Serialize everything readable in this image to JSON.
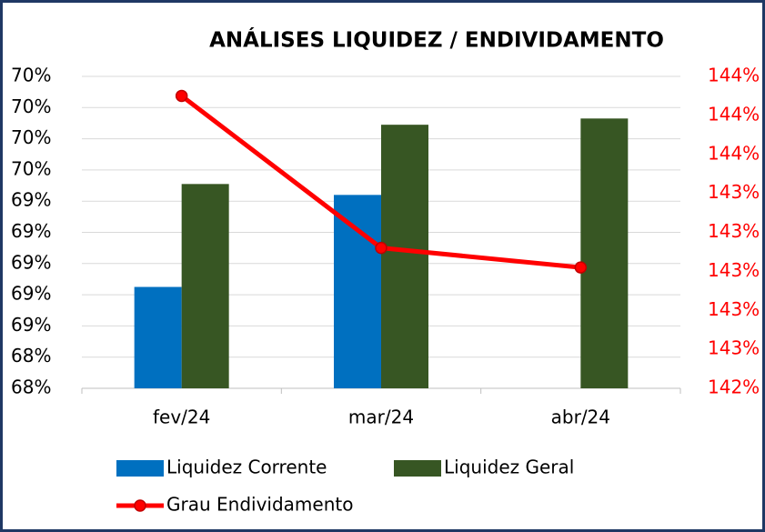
{
  "chart_data": {
    "type": "bar-line",
    "title": "ANÁLISES LIQUIDEZ / ENDIVIDAMENTO",
    "categories": [
      "fev/24",
      "mar/24",
      "abr/24"
    ],
    "series": [
      {
        "name": "Liquidez Corrente",
        "color": "#0070c0",
        "values": [
          68.8,
          69.39,
          null
        ]
      },
      {
        "name": "Liquidez Geral",
        "color": "#375623",
        "values": [
          69.46,
          69.84,
          69.88
        ]
      },
      {
        "name": "Grau Endividamento",
        "color": "#ff0000",
        "type": "line",
        "axis": "y2",
        "values": [
          143.9,
          143.12,
          143.02
        ]
      }
    ],
    "ylim": [
      68.15,
      70.15
    ],
    "yticks": [
      {
        "value": 68.15,
        "label": "68%"
      },
      {
        "value": 68.35,
        "label": "68%"
      },
      {
        "value": 68.55,
        "label": "69%"
      },
      {
        "value": 68.75,
        "label": "69%"
      },
      {
        "value": 68.95,
        "label": "69%"
      },
      {
        "value": 69.15,
        "label": "69%"
      },
      {
        "value": 69.35,
        "label": "69%"
      },
      {
        "value": 69.55,
        "label": "70%"
      },
      {
        "value": 69.75,
        "label": "70%"
      },
      {
        "value": 69.95,
        "label": "70%"
      },
      {
        "value": 70.15,
        "label": "70%"
      }
    ],
    "y2lim": [
      142.4,
      144.0
    ],
    "y2ticks": [
      {
        "value": 142.4,
        "label": "142%"
      },
      {
        "value": 142.6,
        "label": "143%"
      },
      {
        "value": 142.8,
        "label": "143%"
      },
      {
        "value": 143.0,
        "label": "143%"
      },
      {
        "value": 143.2,
        "label": "143%"
      },
      {
        "value": 143.4,
        "label": "143%"
      },
      {
        "value": 143.6,
        "label": "144%"
      },
      {
        "value": 143.8,
        "label": "144%"
      },
      {
        "value": 144.0,
        "label": "144%"
      }
    ],
    "grid": true
  }
}
